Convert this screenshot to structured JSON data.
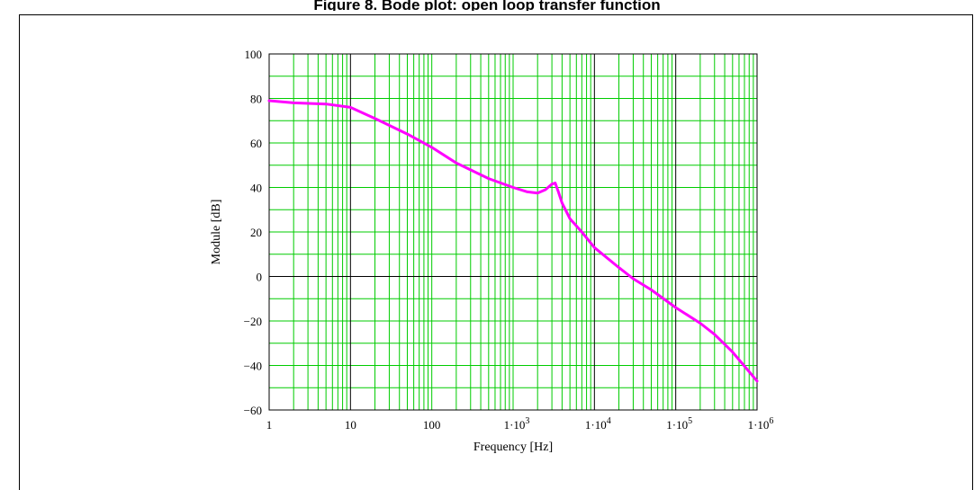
{
  "page": {
    "title": "Figure 8. Bode plot: open loop transfer function"
  },
  "chart_data": {
    "type": "line",
    "title": "Figure 8. Bode plot: open loop transfer function",
    "xlabel": "Frequency [Hz]",
    "ylabel": "Module [dB]",
    "xscale": "log",
    "xlim": [
      1,
      1000000
    ],
    "ylim": [
      -60,
      100
    ],
    "grid": true,
    "grid_color": "#00cc00",
    "major_grid_color": "#000000",
    "line_color": "#ff00ff",
    "xticks": [
      {
        "base": "1",
        "exp": "",
        "value": 1
      },
      {
        "base": "10",
        "exp": "",
        "value": 10
      },
      {
        "base": "100",
        "exp": "",
        "value": 100
      },
      {
        "base": "1·10",
        "exp": "3",
        "value": 1000
      },
      {
        "base": "1·10",
        "exp": "4",
        "value": 10000
      },
      {
        "base": "1·10",
        "exp": "5",
        "value": 100000
      },
      {
        "base": "1·10",
        "exp": "6",
        "value": 1000000
      }
    ],
    "yticks": [
      "100",
      "80",
      "60",
      "40",
      "20",
      "0",
      "-20",
      "-40",
      "-60"
    ],
    "series": [
      {
        "x": [
          1,
          2,
          5,
          10,
          20,
          50,
          100,
          200,
          500,
          1000,
          1500,
          2000,
          2500,
          3000,
          3300,
          3600,
          4000,
          5000,
          7000,
          10000,
          20000,
          30000,
          50000,
          100000,
          200000,
          300000,
          500000,
          1000000
        ],
        "y": [
          79,
          78,
          77.5,
          76,
          71,
          64,
          58,
          51,
          44,
          40,
          38,
          37.5,
          39,
          41.5,
          42,
          38,
          33,
          26,
          20,
          13,
          4,
          -1,
          -6,
          -14,
          -21,
          -26,
          -34,
          -47
        ]
      }
    ]
  }
}
